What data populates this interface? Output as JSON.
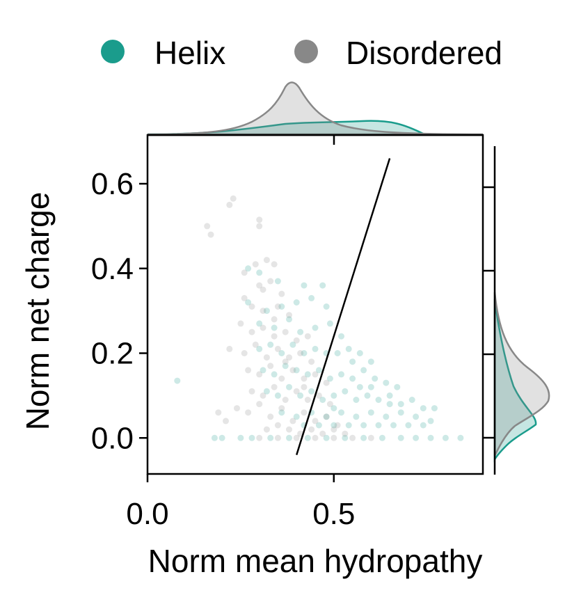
{
  "chart_data": {
    "type": "scatter",
    "xlabel": "Norm mean hydropathy",
    "ylabel": "Norm net charge",
    "xlim": [
      0.0,
      0.9
    ],
    "ylim": [
      -0.085,
      0.715
    ],
    "x_ticks": [
      {
        "value": 0.0,
        "label": "0.0"
      },
      {
        "value": 0.5,
        "label": "0.5"
      }
    ],
    "y_ticks": [
      {
        "value": 0.0,
        "label": "0.0"
      },
      {
        "value": 0.2,
        "label": "0.2"
      },
      {
        "value": 0.4,
        "label": "0.4"
      },
      {
        "value": 0.6,
        "label": "0.6"
      }
    ],
    "legend": {
      "position": "top",
      "entries": [
        {
          "label": "Helix",
          "color": "#1a9c8c"
        },
        {
          "label": "Disordered",
          "color": "#888888"
        }
      ]
    },
    "series": [
      {
        "name": "Helix",
        "color": "#1a9c8c",
        "opacity": 0.22,
        "points": [
          [
            0.08,
            0.135
          ],
          [
            0.18,
            0.0
          ],
          [
            0.2,
            0.0
          ],
          [
            0.25,
            0.0
          ],
          [
            0.28,
            0.0
          ],
          [
            0.27,
            0.4
          ],
          [
            0.3,
            0.39
          ],
          [
            0.35,
            0.37
          ],
          [
            0.42,
            0.36
          ],
          [
            0.47,
            0.36
          ],
          [
            0.27,
            0.32
          ],
          [
            0.32,
            0.3
          ],
          [
            0.36,
            0.31
          ],
          [
            0.4,
            0.32
          ],
          [
            0.44,
            0.33
          ],
          [
            0.48,
            0.31
          ],
          [
            0.3,
            0.27
          ],
          [
            0.34,
            0.26
          ],
          [
            0.38,
            0.28
          ],
          [
            0.41,
            0.25
          ],
          [
            0.45,
            0.26
          ],
          [
            0.49,
            0.27
          ],
          [
            0.52,
            0.24
          ],
          [
            0.3,
            0.21
          ],
          [
            0.33,
            0.22
          ],
          [
            0.36,
            0.2
          ],
          [
            0.39,
            0.22
          ],
          [
            0.42,
            0.2
          ],
          [
            0.45,
            0.21
          ],
          [
            0.48,
            0.2
          ],
          [
            0.51,
            0.2
          ],
          [
            0.54,
            0.21
          ],
          [
            0.57,
            0.2
          ],
          [
            0.6,
            0.18
          ],
          [
            0.31,
            0.16
          ],
          [
            0.34,
            0.15
          ],
          [
            0.37,
            0.17
          ],
          [
            0.4,
            0.16
          ],
          [
            0.43,
            0.15
          ],
          [
            0.46,
            0.16
          ],
          [
            0.49,
            0.14
          ],
          [
            0.52,
            0.15
          ],
          [
            0.55,
            0.14
          ],
          [
            0.58,
            0.16
          ],
          [
            0.61,
            0.14
          ],
          [
            0.64,
            0.13
          ],
          [
            0.67,
            0.12
          ],
          [
            0.32,
            0.11
          ],
          [
            0.35,
            0.1
          ],
          [
            0.38,
            0.12
          ],
          [
            0.41,
            0.1
          ],
          [
            0.44,
            0.11
          ],
          [
            0.47,
            0.09
          ],
          [
            0.5,
            0.1
          ],
          [
            0.53,
            0.11
          ],
          [
            0.56,
            0.09
          ],
          [
            0.59,
            0.1
          ],
          [
            0.62,
            0.09
          ],
          [
            0.65,
            0.1
          ],
          [
            0.68,
            0.08
          ],
          [
            0.71,
            0.09
          ],
          [
            0.74,
            0.07
          ],
          [
            0.77,
            0.07
          ],
          [
            0.36,
            0.06
          ],
          [
            0.4,
            0.05
          ],
          [
            0.44,
            0.06
          ],
          [
            0.48,
            0.05
          ],
          [
            0.52,
            0.06
          ],
          [
            0.56,
            0.05
          ],
          [
            0.6,
            0.06
          ],
          [
            0.64,
            0.05
          ],
          [
            0.68,
            0.06
          ],
          [
            0.72,
            0.05
          ],
          [
            0.76,
            0.04
          ],
          [
            0.42,
            0.03
          ],
          [
            0.46,
            0.03
          ],
          [
            0.5,
            0.03
          ],
          [
            0.54,
            0.03
          ],
          [
            0.58,
            0.03
          ],
          [
            0.62,
            0.03
          ],
          [
            0.66,
            0.03
          ],
          [
            0.7,
            0.03
          ],
          [
            0.74,
            0.03
          ],
          [
            0.33,
            0.0
          ],
          [
            0.38,
            0.0
          ],
          [
            0.43,
            0.0
          ],
          [
            0.48,
            0.0
          ],
          [
            0.53,
            0.0
          ],
          [
            0.58,
            0.0
          ],
          [
            0.63,
            0.0
          ],
          [
            0.68,
            0.0
          ],
          [
            0.72,
            0.0
          ],
          [
            0.76,
            0.0
          ],
          [
            0.8,
            0.0
          ],
          [
            0.84,
            0.0
          ],
          [
            0.55,
            0.18
          ],
          [
            0.6,
            0.12
          ],
          [
            0.65,
            0.08
          ],
          [
            0.5,
            0.07
          ],
          [
            0.57,
            0.12
          ]
        ]
      },
      {
        "name": "Disordered",
        "color": "#888888",
        "opacity": 0.22,
        "points": [
          [
            0.16,
            0.5
          ],
          [
            0.17,
            0.48
          ],
          [
            0.23,
            0.565
          ],
          [
            0.22,
            0.55
          ],
          [
            0.3,
            0.515
          ],
          [
            0.3,
            0.5
          ],
          [
            0.32,
            0.42
          ],
          [
            0.34,
            0.41
          ],
          [
            0.29,
            0.41
          ],
          [
            0.26,
            0.39
          ],
          [
            0.3,
            0.36
          ],
          [
            0.33,
            0.37
          ],
          [
            0.36,
            0.34
          ],
          [
            0.26,
            0.33
          ],
          [
            0.28,
            0.31
          ],
          [
            0.31,
            0.3
          ],
          [
            0.35,
            0.31
          ],
          [
            0.38,
            0.29
          ],
          [
            0.25,
            0.27
          ],
          [
            0.28,
            0.25
          ],
          [
            0.31,
            0.26
          ],
          [
            0.34,
            0.24
          ],
          [
            0.37,
            0.25
          ],
          [
            0.4,
            0.23
          ],
          [
            0.43,
            0.24
          ],
          [
            0.22,
            0.21
          ],
          [
            0.26,
            0.2
          ],
          [
            0.29,
            0.22
          ],
          [
            0.32,
            0.19
          ],
          [
            0.35,
            0.21
          ],
          [
            0.38,
            0.19
          ],
          [
            0.41,
            0.2
          ],
          [
            0.44,
            0.18
          ],
          [
            0.27,
            0.16
          ],
          [
            0.3,
            0.15
          ],
          [
            0.33,
            0.17
          ],
          [
            0.36,
            0.14
          ],
          [
            0.39,
            0.16
          ],
          [
            0.42,
            0.14
          ],
          [
            0.45,
            0.15
          ],
          [
            0.48,
            0.13
          ],
          [
            0.28,
            0.11
          ],
          [
            0.31,
            0.1
          ],
          [
            0.34,
            0.12
          ],
          [
            0.37,
            0.09
          ],
          [
            0.4,
            0.11
          ],
          [
            0.43,
            0.09
          ],
          [
            0.46,
            0.1
          ],
          [
            0.49,
            0.08
          ],
          [
            0.24,
            0.07
          ],
          [
            0.27,
            0.06
          ],
          [
            0.3,
            0.08
          ],
          [
            0.33,
            0.05
          ],
          [
            0.36,
            0.07
          ],
          [
            0.39,
            0.04
          ],
          [
            0.42,
            0.06
          ],
          [
            0.45,
            0.04
          ],
          [
            0.48,
            0.05
          ],
          [
            0.51,
            0.03
          ],
          [
            0.19,
            0.06
          ],
          [
            0.21,
            0.04
          ],
          [
            0.32,
            0.02
          ],
          [
            0.35,
            0.03
          ],
          [
            0.38,
            0.02
          ],
          [
            0.41,
            0.01
          ],
          [
            0.44,
            0.02
          ],
          [
            0.47,
            0.01
          ],
          [
            0.5,
            0.02
          ],
          [
            0.53,
            0.01
          ],
          [
            0.3,
            0.0
          ],
          [
            0.35,
            0.0
          ],
          [
            0.4,
            0.0
          ],
          [
            0.45,
            0.0
          ],
          [
            0.5,
            0.0
          ],
          [
            0.55,
            0.0
          ],
          [
            0.6,
            0.0
          ],
          [
            0.34,
            0.28
          ],
          [
            0.31,
            0.35
          ],
          [
            0.37,
            0.18
          ],
          [
            0.42,
            0.12
          ]
        ]
      }
    ],
    "line": {
      "x": [
        0.4,
        0.65
      ],
      "y": [
        -0.04,
        0.66
      ],
      "color": "#000000"
    }
  }
}
